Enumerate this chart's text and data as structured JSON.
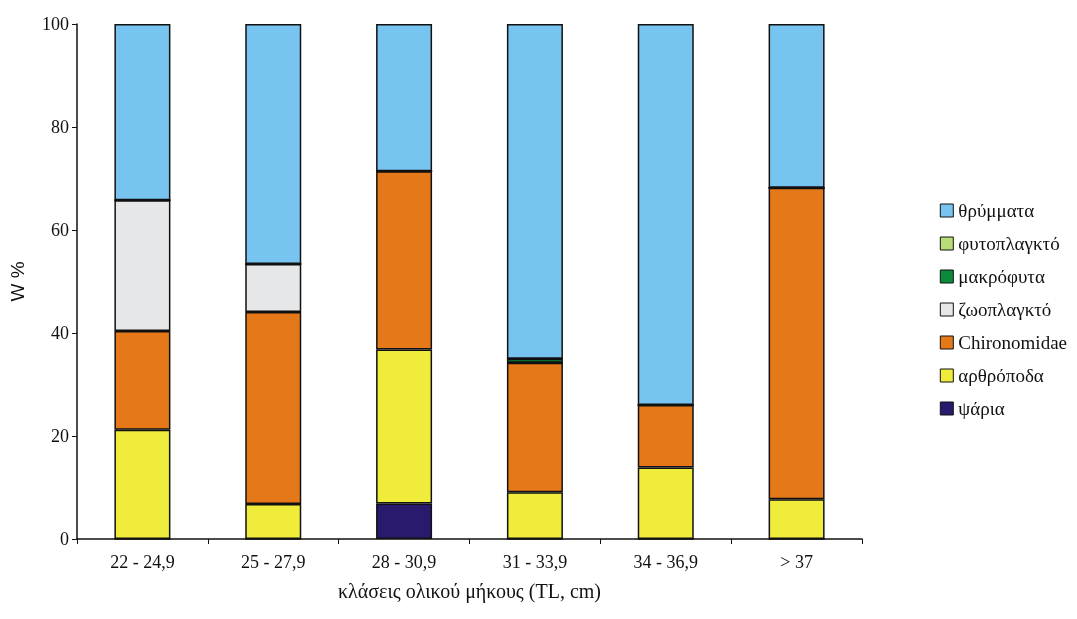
{
  "chart_data": {
    "type": "bar",
    "stacked": true,
    "xlabel": "κλάσεις ολικού μήκους (TL, cm)",
    "ylabel": "W %",
    "categories": [
      "22 - 24,9",
      "25 - 27,9",
      "28 - 30,9",
      "31 - 33,9",
      "34 - 36,9",
      "> 37"
    ],
    "series": [
      {
        "name": "ψάρια",
        "color": "#2a1a6e",
        "values": [
          0,
          0,
          6.9,
          0,
          0,
          0
        ]
      },
      {
        "name": "αρθρόποδα",
        "color": "#f0ec3c",
        "values": [
          21.2,
          6.8,
          29.9,
          9.1,
          13.9,
          7.7
        ]
      },
      {
        "name": "Chironomidae",
        "color": "#e57818",
        "values": [
          19.2,
          37.3,
          34.6,
          25.1,
          12.1,
          60.5
        ]
      },
      {
        "name": "ζωοπλαγκτό",
        "color": "#e6e7e8",
        "values": [
          25.4,
          9.3,
          0,
          0,
          0,
          0
        ]
      },
      {
        "name": "μακρόφυτα",
        "color": "#0a8a3a",
        "values": [
          0,
          0,
          0,
          0.8,
          0,
          0
        ]
      },
      {
        "name": "φυτοπλαγκτό",
        "color": "#b8dc78",
        "values": [
          0,
          0,
          0,
          0,
          0,
          0
        ]
      },
      {
        "name": "θρύμματα",
        "color": "#78c4f0",
        "values": [
          34.2,
          46.6,
          28.6,
          65.0,
          74.0,
          31.8
        ]
      }
    ],
    "ylim": [
      0,
      100
    ],
    "yticks": [
      0,
      20,
      40,
      60,
      80,
      100
    ],
    "grid": false,
    "legend": "right"
  }
}
